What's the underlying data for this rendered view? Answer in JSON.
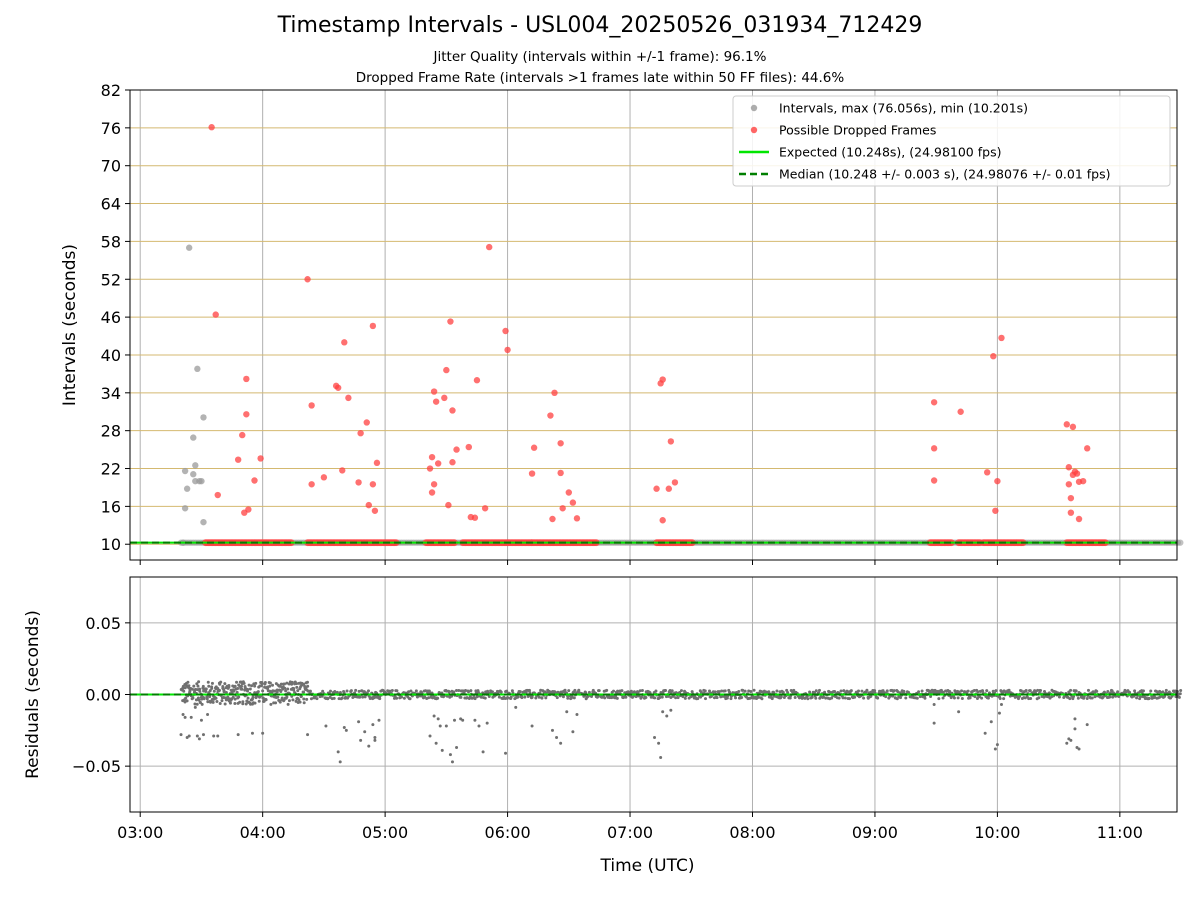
{
  "chart_data": [
    {
      "type": "scatter",
      "title": "Timestamp Intervals - USL004_20250526_031934_712429",
      "subtitle": [
        "Jitter Quality (intervals within +/-1 frame): 96.1%",
        "Dropped Frame Rate (intervals >1 frames late within 50 FF files): 44.6%"
      ],
      "ylabel": "Intervals (seconds)",
      "ylim": [
        7.5,
        82
      ],
      "yticks": [
        "10",
        "16",
        "22",
        "28",
        "34",
        "40",
        "46",
        "52",
        "58",
        "64",
        "70",
        "76",
        "82"
      ],
      "grid": true,
      "legend_position": "top-right",
      "legend": [
        {
          "label": "Intervals, max (76.056s), min (10.201s)",
          "color": "#999999",
          "kind": "marker"
        },
        {
          "label": "Possible Dropped Frames",
          "color": "#ff4040",
          "kind": "marker"
        },
        {
          "label": "Expected (10.248s), (24.98100 fps)",
          "color": "#00e600",
          "kind": "solid"
        },
        {
          "label": "Median (10.248 +/- 0.003 s), (24.98076 +/- 0.01 fps)",
          "color": "#007f00",
          "kind": "dashed"
        }
      ],
      "expected_value": 10.248,
      "median_value": 10.248,
      "series": [
        {
          "name": "Intervals, max (76.056s), min (10.201s)",
          "color": "#999999",
          "points": [
            [
              "03:21",
              10.25
            ],
            [
              "03:22",
              21.6
            ],
            [
              "03:23",
              18.8
            ],
            [
              "03:22",
              15.7
            ],
            [
              "03:24",
              57.0
            ],
            [
              "03:26",
              21.1
            ],
            [
              "03:26",
              26.9
            ],
            [
              "03:27",
              22.5
            ],
            [
              "03:27",
              20.0
            ],
            [
              "03:28",
              37.8
            ],
            [
              "03:29",
              20.0
            ],
            [
              "03:30",
              20.0
            ],
            [
              "03:31",
              13.5
            ],
            [
              "03:31",
              30.1
            ]
          ],
          "baseline_band": [
            "03:20",
            "11:30"
          ]
        },
        {
          "name": "Possible Dropped Frames",
          "color": "#ff4040",
          "points": [
            [
              "03:35",
              76.1
            ],
            [
              "03:37",
              46.4
            ],
            [
              "03:38",
              17.8
            ],
            [
              "03:48",
              23.4
            ],
            [
              "03:50",
              27.3
            ],
            [
              "03:51",
              15.0
            ],
            [
              "03:52",
              36.2
            ],
            [
              "03:52",
              30.6
            ],
            [
              "03:53",
              15.5
            ],
            [
              "03:56",
              20.1
            ],
            [
              "03:59",
              23.6
            ],
            [
              "04:22",
              52.0
            ],
            [
              "04:24",
              32.0
            ],
            [
              "04:24",
              19.5
            ],
            [
              "04:30",
              20.6
            ],
            [
              "04:36",
              35.1
            ],
            [
              "04:37",
              34.8
            ],
            [
              "04:39",
              21.7
            ],
            [
              "04:40",
              42.0
            ],
            [
              "04:42",
              33.2
            ],
            [
              "04:47",
              19.8
            ],
            [
              "04:48",
              27.6
            ],
            [
              "04:51",
              29.3
            ],
            [
              "04:52",
              16.2
            ],
            [
              "04:54",
              44.6
            ],
            [
              "04:54",
              19.5
            ],
            [
              "04:55",
              15.3
            ],
            [
              "04:56",
              22.9
            ],
            [
              "05:22",
              22.0
            ],
            [
              "05:23",
              23.8
            ],
            [
              "05:23",
              18.2
            ],
            [
              "05:24",
              34.2
            ],
            [
              "05:24",
              19.5
            ],
            [
              "05:25",
              32.6
            ],
            [
              "05:26",
              22.8
            ],
            [
              "05:29",
              33.2
            ],
            [
              "05:30",
              37.6
            ],
            [
              "05:31",
              16.2
            ],
            [
              "05:32",
              45.3
            ],
            [
              "05:33",
              31.2
            ],
            [
              "05:33",
              23.0
            ],
            [
              "05:35",
              25.0
            ],
            [
              "05:41",
              25.4
            ],
            [
              "05:42",
              14.3
            ],
            [
              "05:44",
              14.2
            ],
            [
              "05:45",
              36.0
            ],
            [
              "05:49",
              15.7
            ],
            [
              "05:51",
              57.1
            ],
            [
              "05:59",
              43.8
            ],
            [
              "06:00",
              40.8
            ],
            [
              "06:12",
              21.2
            ],
            [
              "06:13",
              25.3
            ],
            [
              "06:21",
              30.4
            ],
            [
              "06:22",
              14.0
            ],
            [
              "06:23",
              34.0
            ],
            [
              "06:26",
              26.0
            ],
            [
              "06:26",
              21.3
            ],
            [
              "06:27",
              15.7
            ],
            [
              "06:30",
              18.2
            ],
            [
              "06:32",
              16.6
            ],
            [
              "06:34",
              14.1
            ],
            [
              "07:13",
              18.8
            ],
            [
              "07:15",
              35.5
            ],
            [
              "07:16",
              13.8
            ],
            [
              "07:16",
              36.1
            ],
            [
              "07:19",
              18.8
            ],
            [
              "07:20",
              26.3
            ],
            [
              "07:22",
              19.8
            ],
            [
              "09:29",
              32.5
            ],
            [
              "09:29",
              25.2
            ],
            [
              "09:29",
              20.1
            ],
            [
              "09:42",
              31.0
            ],
            [
              "09:55",
              21.4
            ],
            [
              "09:58",
              39.8
            ],
            [
              "09:59",
              15.3
            ],
            [
              "10:00",
              20.0
            ],
            [
              "10:02",
              42.7
            ],
            [
              "10:34",
              29.0
            ],
            [
              "10:35",
              22.2
            ],
            [
              "10:35",
              19.5
            ],
            [
              "10:36",
              15.0
            ],
            [
              "10:36",
              17.3
            ],
            [
              "10:37",
              28.6
            ],
            [
              "10:37",
              21.0
            ],
            [
              "10:38",
              21.5
            ],
            [
              "10:39",
              21.2
            ],
            [
              "10:40",
              14.0
            ],
            [
              "10:40",
              19.9
            ],
            [
              "10:42",
              20.0
            ],
            [
              "10:44",
              25.2
            ]
          ],
          "baseline_segments": [
            [
              "03:32",
              "04:14"
            ],
            [
              "04:22",
              "05:06"
            ],
            [
              "05:20",
              "05:34"
            ],
            [
              "05:38",
              "06:12"
            ],
            [
              "06:12",
              "06:44"
            ],
            [
              "07:13",
              "07:31"
            ],
            [
              "09:27",
              "09:38"
            ],
            [
              "09:41",
              "09:52"
            ],
            [
              "09:53",
              "10:13"
            ],
            [
              "10:34",
              "10:53"
            ]
          ]
        }
      ]
    },
    {
      "type": "scatter",
      "xlabel": "Time (UTC)",
      "ylabel": "Residuals (seconds)",
      "ylim": [
        -0.082,
        0.082
      ],
      "yticks": [
        "−0.05",
        "0.00",
        "0.05"
      ],
      "xticks": [
        "03:00",
        "04:00",
        "05:00",
        "06:00",
        "07:00",
        "08:00",
        "09:00",
        "10:00",
        "11:00"
      ],
      "xlim": [
        "02:55",
        "11:28"
      ],
      "grid": true,
      "series": [
        {
          "name": "Residuals",
          "color": "#707070",
          "dense_band": [
            {
              "from": "03:20",
              "to": "04:22",
              "low": -0.007,
              "high": 0.009
            },
            {
              "from": "04:22",
              "to": "11:30",
              "low": -0.003,
              "high": 0.003
            }
          ],
          "points": [
            [
              "03:20",
              -0.028
            ],
            [
              "03:21",
              -0.014
            ],
            [
              "03:22",
              -0.016
            ],
            [
              "03:23",
              -0.03
            ],
            [
              "03:24",
              -0.029
            ],
            [
              "03:25",
              -0.016
            ],
            [
              "03:27",
              -0.009
            ],
            [
              "03:28",
              -0.029
            ],
            [
              "03:29",
              -0.031
            ],
            [
              "03:30",
              -0.018
            ],
            [
              "03:31",
              -0.028
            ],
            [
              "03:33",
              -0.014
            ],
            [
              "03:36",
              -0.029
            ],
            [
              "03:38",
              -0.029
            ],
            [
              "03:48",
              -0.028
            ],
            [
              "03:55",
              -0.027
            ],
            [
              "04:00",
              -0.027
            ],
            [
              "04:22",
              -0.028
            ],
            [
              "04:31",
              -0.022
            ],
            [
              "04:37",
              -0.04
            ],
            [
              "04:38",
              -0.047
            ],
            [
              "04:40",
              -0.023
            ],
            [
              "04:41",
              -0.025
            ],
            [
              "04:47",
              -0.019
            ],
            [
              "04:48",
              -0.032
            ],
            [
              "04:50",
              -0.026
            ],
            [
              "04:52",
              -0.036
            ],
            [
              "04:54",
              -0.021
            ],
            [
              "04:55",
              -0.03
            ],
            [
              "04:55",
              -0.032
            ],
            [
              "04:57",
              -0.018
            ],
            [
              "05:22",
              -0.029
            ],
            [
              "05:24",
              -0.015
            ],
            [
              "05:25",
              -0.034
            ],
            [
              "05:26",
              -0.017
            ],
            [
              "05:27",
              -0.022
            ],
            [
              "05:28",
              -0.039
            ],
            [
              "05:30",
              -0.022
            ],
            [
              "05:32",
              -0.042
            ],
            [
              "05:33",
              -0.047
            ],
            [
              "05:34",
              -0.018
            ],
            [
              "05:35",
              -0.037
            ],
            [
              "05:37",
              -0.017
            ],
            [
              "05:38",
              -0.018
            ],
            [
              "05:44",
              -0.018
            ],
            [
              "05:46",
              -0.022
            ],
            [
              "05:48",
              -0.04
            ],
            [
              "05:50",
              -0.02
            ],
            [
              "05:59",
              -0.041
            ],
            [
              "06:04",
              -0.009
            ],
            [
              "06:12",
              -0.022
            ],
            [
              "06:22",
              -0.025
            ],
            [
              "06:24",
              -0.03
            ],
            [
              "06:26",
              -0.034
            ],
            [
              "06:29",
              -0.012
            ],
            [
              "06:32",
              -0.026
            ],
            [
              "06:34",
              -0.014
            ],
            [
              "07:12",
              -0.03
            ],
            [
              "07:14",
              -0.034
            ],
            [
              "07:15",
              -0.044
            ],
            [
              "07:16",
              -0.012
            ],
            [
              "07:18",
              -0.015
            ],
            [
              "07:20",
              -0.011
            ],
            [
              "09:29",
              -0.007
            ],
            [
              "09:29",
              -0.02
            ],
            [
              "09:41",
              -0.012
            ],
            [
              "09:54",
              -0.027
            ],
            [
              "09:57",
              -0.019
            ],
            [
              "09:59",
              -0.038
            ],
            [
              "10:00",
              -0.035
            ],
            [
              "10:01",
              -0.013
            ],
            [
              "10:02",
              -0.007
            ],
            [
              "10:34",
              -0.034
            ],
            [
              "10:35",
              -0.031
            ],
            [
              "10:36",
              -0.032
            ],
            [
              "10:38",
              -0.017
            ],
            [
              "10:38",
              -0.024
            ],
            [
              "10:39",
              -0.037
            ],
            [
              "10:40",
              -0.038
            ],
            [
              "10:44",
              -0.021
            ]
          ]
        }
      ]
    }
  ]
}
